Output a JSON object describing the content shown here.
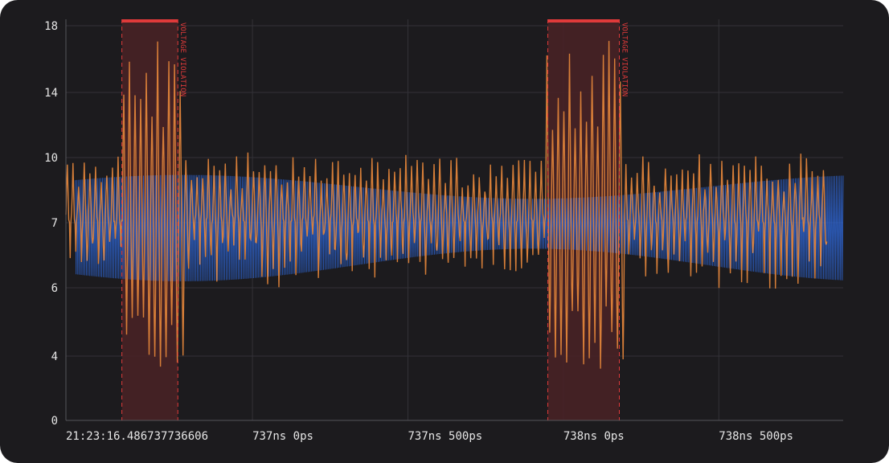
{
  "colors": {
    "background": "#1c1b1e",
    "grid": "#333238",
    "axis_text": "#e6e6e6",
    "violation": "#e03a3a",
    "violation_fill": "#4a2226",
    "series_orange": "#e0843a",
    "series_blue": "#2f6be0"
  },
  "chart_data": {
    "type": "line",
    "title": "",
    "xlabel": "",
    "ylabel": "",
    "x_unit": "ns",
    "x_range": [
      736.4,
      738.9
    ],
    "x_tick_positions": [
      736.5,
      737.0,
      737.5,
      738.0,
      738.5
    ],
    "x_tick_labels": [
      "21:23:16.486737736606",
      "737ns 0ps",
      "737ns 500ps",
      "738ns 0ps",
      "738ns 500ps"
    ],
    "y_ticks": [
      0,
      4,
      6,
      7,
      10,
      14,
      18
    ],
    "y_scale": "symmetric-log",
    "grid": true,
    "legend": "none",
    "series": [
      {
        "color": "#e0843a",
        "kind": "oscillating signal with noise spikes",
        "baseline": 7.3,
        "normal_swing": [
          6.3,
          10.0
        ],
        "spike_swing": [
          3.2,
          17.5
        ],
        "cycles_per_ns": 55
      },
      {
        "color": "#2f6be0",
        "kind": "high-frequency envelope band",
        "center": 7.4,
        "envelope_min": [
          6.6,
          8.1
        ],
        "envelope_max": [
          6.1,
          9.2
        ],
        "cycles_per_ns": 210
      }
    ],
    "violation_regions": [
      {
        "x_start": 736.58,
        "x_end": 736.76,
        "label": "VOLTAGE VIOLATION"
      },
      {
        "x_start": 737.95,
        "x_end": 738.18,
        "label": "VOLTAGE VIOLATION"
      }
    ]
  }
}
